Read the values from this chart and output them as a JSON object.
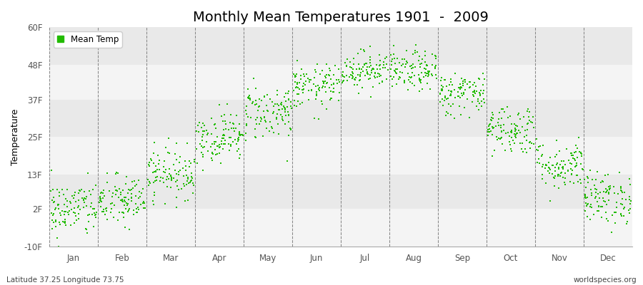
{
  "title": "Monthly Mean Temperatures 1901  -  2009",
  "ylabel": "Temperature",
  "ylim": [
    -10,
    60
  ],
  "yticks": [
    -10,
    2,
    13,
    25,
    37,
    48,
    60
  ],
  "ytick_labels": [
    "-10F",
    "2F",
    "13F",
    "25F",
    "37F",
    "48F",
    "60F"
  ],
  "months": [
    "Jan",
    "Feb",
    "Mar",
    "Apr",
    "May",
    "Jun",
    "Jul",
    "Aug",
    "Sep",
    "Oct",
    "Nov",
    "Dec"
  ],
  "month_means": [
    2.0,
    4.5,
    13.5,
    25.0,
    33.0,
    41.0,
    46.5,
    46.0,
    39.0,
    27.5,
    16.0,
    5.5
  ],
  "month_stds": [
    4.5,
    4.2,
    4.0,
    4.0,
    4.5,
    3.5,
    3.0,
    3.2,
    3.5,
    4.0,
    4.0,
    4.2
  ],
  "n_years": 109,
  "dot_color": "#22bb00",
  "dot_size": 2.5,
  "band_color_light": "#f4f4f4",
  "band_color_dark": "#e9e9e9",
  "legend_label": "Mean Temp",
  "footer_left": "Latitude 37.25 Longitude 73.75",
  "footer_right": "worldspecies.org",
  "title_fontsize": 14,
  "axis_label_fontsize": 9,
  "tick_fontsize": 8.5,
  "footer_fontsize": 7.5
}
